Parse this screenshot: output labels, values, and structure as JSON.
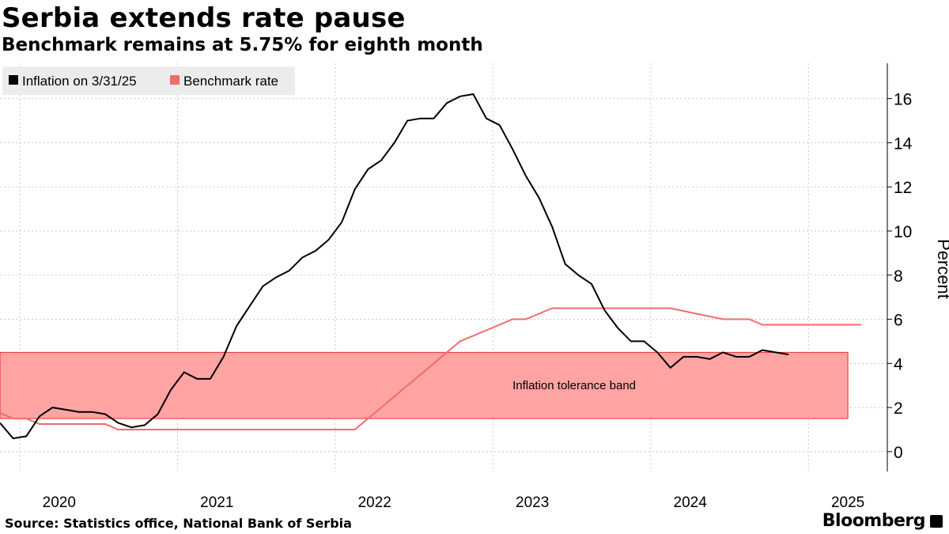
{
  "header": {
    "title": "Serbia extends rate pause",
    "subtitle": "Benchmark remains at 5.75% for eighth month"
  },
  "footer": {
    "source": "Source: Statistics office, National Bank of Serbia",
    "brand": "Bloomberg"
  },
  "colors": {
    "inflation": "#000000",
    "benchmark": "#f26b6b",
    "band_fill": "#ffa3a3",
    "band_stroke": "#e8302f",
    "grid": "#c8c8c8",
    "legend_bg": "#ececec"
  },
  "chart_data": {
    "type": "line",
    "title": "Serbia extends rate pause",
    "subtitle": "Benchmark remains at 5.75% for eighth month",
    "ylabel": "Percent",
    "ylim": [
      -0.9,
      17.6
    ],
    "yticks": [
      0,
      2,
      4,
      6,
      8,
      10,
      12,
      14,
      16
    ],
    "xlim": [
      2019.625,
      2025.25
    ],
    "x_year_labels": [
      {
        "label": "2020",
        "x": 2020.0
      },
      {
        "label": "2021",
        "x": 2021.0
      },
      {
        "label": "2022",
        "x": 2022.0
      },
      {
        "label": "2023",
        "x": 2023.0
      },
      {
        "label": "2024",
        "x": 2024.0
      },
      {
        "label": "2025",
        "x": 2025.0
      }
    ],
    "year_gridlines": [
      2019.75,
      2020.75,
      2021.75,
      2022.75,
      2023.75,
      2024.75
    ],
    "legend_position": "top-left",
    "band": {
      "label": "Inflation tolerance band",
      "ymin": 1.5,
      "ymax": 4.5,
      "x_end": 2025.0
    },
    "series": [
      {
        "name": "Inflation on 3/31/25",
        "points": [
          [
            2019.625,
            1.3
          ],
          [
            2019.708,
            0.6
          ],
          [
            2019.792,
            0.7
          ],
          [
            2019.875,
            1.6
          ],
          [
            2019.958,
            2.0
          ],
          [
            2020.042,
            1.9
          ],
          [
            2020.125,
            1.8
          ],
          [
            2020.208,
            1.8
          ],
          [
            2020.292,
            1.7
          ],
          [
            2020.375,
            1.3
          ],
          [
            2020.458,
            1.1
          ],
          [
            2020.542,
            1.2
          ],
          [
            2020.625,
            1.7
          ],
          [
            2020.708,
            2.8
          ],
          [
            2020.792,
            3.6
          ],
          [
            2020.875,
            3.3
          ],
          [
            2020.958,
            3.3
          ],
          [
            2021.042,
            4.3
          ],
          [
            2021.125,
            5.7
          ],
          [
            2021.208,
            6.6
          ],
          [
            2021.292,
            7.5
          ],
          [
            2021.375,
            7.9
          ],
          [
            2021.458,
            8.2
          ],
          [
            2021.542,
            8.8
          ],
          [
            2021.625,
            9.1
          ],
          [
            2021.708,
            9.6
          ],
          [
            2021.792,
            10.4
          ],
          [
            2021.875,
            11.9
          ],
          [
            2021.958,
            12.8
          ],
          [
            2022.042,
            13.2
          ],
          [
            2022.125,
            14.0
          ],
          [
            2022.208,
            15.0
          ],
          [
            2022.292,
            15.1
          ],
          [
            2022.375,
            15.1
          ],
          [
            2022.458,
            15.8
          ],
          [
            2022.542,
            16.1
          ],
          [
            2022.625,
            16.2
          ],
          [
            2022.708,
            15.1
          ],
          [
            2022.792,
            14.8
          ],
          [
            2022.875,
            13.7
          ],
          [
            2022.958,
            12.5
          ],
          [
            2023.042,
            11.5
          ],
          [
            2023.125,
            10.2
          ],
          [
            2023.208,
            8.5
          ],
          [
            2023.292,
            8.0
          ],
          [
            2023.375,
            7.6
          ],
          [
            2023.458,
            6.4
          ],
          [
            2023.542,
            5.6
          ],
          [
            2023.625,
            5.0
          ],
          [
            2023.708,
            5.0
          ],
          [
            2023.792,
            4.5
          ],
          [
            2023.875,
            3.8
          ],
          [
            2023.958,
            4.3
          ],
          [
            2024.042,
            4.3
          ],
          [
            2024.125,
            4.2
          ],
          [
            2024.208,
            4.5
          ],
          [
            2024.292,
            4.3
          ],
          [
            2024.375,
            4.3
          ],
          [
            2024.458,
            4.6
          ],
          [
            2024.542,
            4.5
          ],
          [
            2024.625,
            4.4
          ]
        ]
      },
      {
        "name": "Benchmark rate",
        "points": [
          [
            2019.625,
            1.75
          ],
          [
            2019.708,
            1.5
          ],
          [
            2019.792,
            1.5
          ],
          [
            2019.875,
            1.25
          ],
          [
            2020.292,
            1.25
          ],
          [
            2020.375,
            1.0
          ],
          [
            2021.875,
            1.0
          ],
          [
            2021.958,
            1.5
          ],
          [
            2022.042,
            2.0
          ],
          [
            2022.125,
            2.5
          ],
          [
            2022.208,
            3.0
          ],
          [
            2022.292,
            3.5
          ],
          [
            2022.375,
            4.0
          ],
          [
            2022.458,
            4.5
          ],
          [
            2022.542,
            5.0
          ],
          [
            2022.708,
            5.5
          ],
          [
            2022.875,
            6.0
          ],
          [
            2022.958,
            6.0
          ],
          [
            2023.125,
            6.5
          ],
          [
            2023.875,
            6.5
          ],
          [
            2024.042,
            6.25
          ],
          [
            2024.208,
            6.0
          ],
          [
            2024.375,
            6.0
          ],
          [
            2024.458,
            5.75
          ],
          [
            2025.083,
            5.75
          ]
        ]
      }
    ]
  }
}
